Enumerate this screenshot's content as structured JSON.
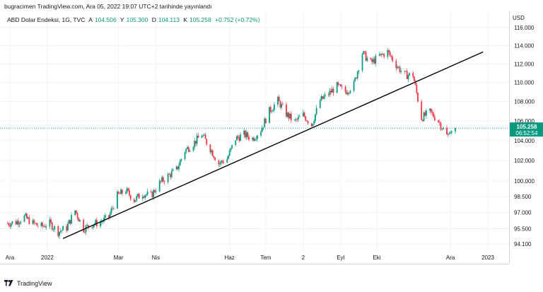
{
  "header": {
    "publish_line": "bugracimen TradingView.com, Ara 05, 2022 19:07 UTC+2 tarihinde yayınlandı"
  },
  "legend": {
    "symbol": "ABD Dolar Endeksi, 1G, TVC",
    "open_label": "A",
    "open": "104.506",
    "high_label": "Y",
    "high": "105.300",
    "low_label": "D",
    "low": "104.113",
    "close_label": "K",
    "close": "105.258",
    "change": "+0.752 (+0.72%)"
  },
  "price_scale": {
    "currency": "USD",
    "last_price": "105.258",
    "countdown": "06:52:54"
  },
  "footer": {
    "brand": "TradingView"
  },
  "colors": {
    "up": "#089981",
    "down": "#f23645",
    "grid": "#f0f3fa",
    "last_price_bg": "#089981",
    "trendline": "#000000",
    "axis_text": "#131722"
  },
  "chart_data": {
    "type": "candlestick",
    "title": "ABD Dolar Endeksi, 1G, TVC",
    "y_scale": "log",
    "ylim": [
      93.4,
      117.2
    ],
    "y_ticks": [
      "116.000",
      "114.000",
      "112.000",
      "110.000",
      "108.000",
      "106.000",
      "104.000",
      "102.000",
      "100.000",
      "98.500",
      "97.000",
      "95.500",
      "94.100"
    ],
    "x_ticks": [
      "Ara",
      "2022",
      "Mar",
      "Nis",
      "Haz",
      "Tem",
      "2",
      "Eyl",
      "Eki",
      "Ara",
      "2023"
    ],
    "x_tick_dates": [
      "2021-12-01",
      "2022-01-01",
      "2022-03-01",
      "2022-04-01",
      "2022-06-01",
      "2022-07-01",
      "2022-08-01",
      "2022-09-01",
      "2022-10-01",
      "2022-12-01",
      "2023-01-01"
    ],
    "xlim": [
      "2021-12-01",
      "2023-01-08"
    ],
    "last_price_line": 105.258,
    "trendline": {
      "from": {
        "date": "2022-01-14",
        "value": 94.6
      },
      "to": {
        "date": "2022-12-28",
        "value": 113.3
      }
    },
    "closes": [
      {
        "date": "2021-11-29",
        "close": 96.0
      },
      {
        "date": "2021-12-06",
        "close": 96.1
      },
      {
        "date": "2021-12-13",
        "close": 96.6
      },
      {
        "date": "2021-12-20",
        "close": 96.0
      },
      {
        "date": "2021-12-27",
        "close": 95.7
      },
      {
        "date": "2022-01-03",
        "close": 96.0
      },
      {
        "date": "2022-01-10",
        "close": 95.2
      },
      {
        "date": "2022-01-17",
        "close": 95.6
      },
      {
        "date": "2022-01-24",
        "close": 97.2
      },
      {
        "date": "2022-01-31",
        "close": 95.5
      },
      {
        "date": "2022-02-07",
        "close": 95.9
      },
      {
        "date": "2022-02-14",
        "close": 96.1
      },
      {
        "date": "2022-02-21",
        "close": 96.6
      },
      {
        "date": "2022-02-28",
        "close": 98.6
      },
      {
        "date": "2022-03-07",
        "close": 99.1
      },
      {
        "date": "2022-03-14",
        "close": 98.2
      },
      {
        "date": "2022-03-21",
        "close": 98.8
      },
      {
        "date": "2022-03-28",
        "close": 98.6
      },
      {
        "date": "2022-04-04",
        "close": 99.8
      },
      {
        "date": "2022-04-11",
        "close": 100.5
      },
      {
        "date": "2022-04-18",
        "close": 101.1
      },
      {
        "date": "2022-04-25",
        "close": 103.0
      },
      {
        "date": "2022-05-02",
        "close": 103.7
      },
      {
        "date": "2022-05-09",
        "close": 104.6
      },
      {
        "date": "2022-05-16",
        "close": 103.2
      },
      {
        "date": "2022-05-23",
        "close": 101.7
      },
      {
        "date": "2022-05-30",
        "close": 102.2
      },
      {
        "date": "2022-06-06",
        "close": 104.2
      },
      {
        "date": "2022-06-13",
        "close": 104.6
      },
      {
        "date": "2022-06-20",
        "close": 104.2
      },
      {
        "date": "2022-06-27",
        "close": 105.1
      },
      {
        "date": "2022-07-04",
        "close": 107.0
      },
      {
        "date": "2022-07-11",
        "close": 108.1
      },
      {
        "date": "2022-07-18",
        "close": 106.7
      },
      {
        "date": "2022-07-25",
        "close": 105.9
      },
      {
        "date": "2022-08-01",
        "close": 106.6
      },
      {
        "date": "2022-08-08",
        "close": 105.6
      },
      {
        "date": "2022-08-15",
        "close": 108.1
      },
      {
        "date": "2022-08-22",
        "close": 108.8
      },
      {
        "date": "2022-08-29",
        "close": 109.6
      },
      {
        "date": "2022-09-05",
        "close": 109.0
      },
      {
        "date": "2022-09-12",
        "close": 109.8
      },
      {
        "date": "2022-09-19",
        "close": 113.2
      },
      {
        "date": "2022-09-26",
        "close": 112.1
      },
      {
        "date": "2022-10-03",
        "close": 112.8
      },
      {
        "date": "2022-10-10",
        "close": 113.3
      },
      {
        "date": "2022-10-17",
        "close": 111.9
      },
      {
        "date": "2022-10-24",
        "close": 110.8
      },
      {
        "date": "2022-10-31",
        "close": 110.8
      },
      {
        "date": "2022-11-07",
        "close": 106.3
      },
      {
        "date": "2022-11-14",
        "close": 106.9
      },
      {
        "date": "2022-11-21",
        "close": 106.0
      },
      {
        "date": "2022-11-28",
        "close": 104.5
      },
      {
        "date": "2022-12-05",
        "close": 105.258
      }
    ]
  }
}
